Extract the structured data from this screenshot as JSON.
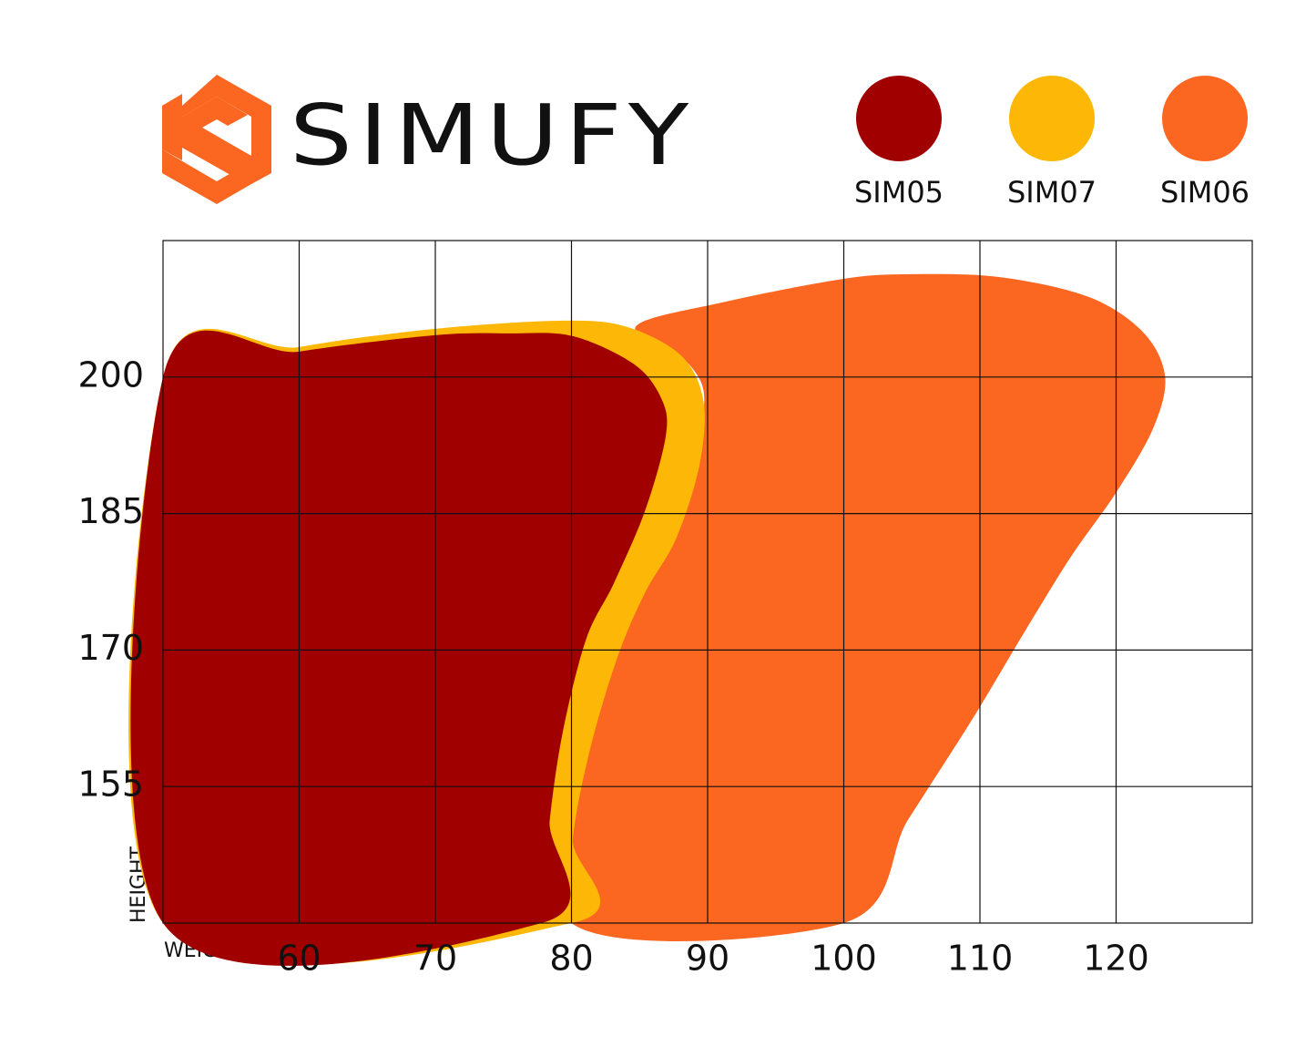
{
  "brand": "SIMUFY",
  "chart_data": {
    "type": "area",
    "x_label": "WEIGHT",
    "y_label": "HEIGHT",
    "xlim": [
      50,
      130
    ],
    "ylim": [
      140,
      215
    ],
    "xticks": [
      60,
      70,
      80,
      90,
      100,
      110,
      120
    ],
    "yticks": [
      155,
      170,
      185,
      200
    ],
    "grid": true,
    "legend": "top-right",
    "series": [
      {
        "name": "SIM05",
        "color": "#a00000",
        "x": [
          50,
          50,
          60,
          70,
          75.4,
          80.1,
          84.7,
          86.7,
          86.9,
          85.4,
          83.1,
          81.1,
          79.4,
          78.4,
          77.8
        ],
        "values": [
          140,
          200,
          202.8,
          204.6,
          204.8,
          204.5,
          201.3,
          197.3,
          193.3,
          185.3,
          177.3,
          171.3,
          161.3,
          151.3,
          140
        ]
      },
      {
        "name": "SIM07",
        "color": "#fdb706",
        "x": [
          50,
          50,
          60,
          70,
          79.4,
          84.1,
          88.1,
          89.7,
          89.4,
          87.7,
          85.4,
          83.4,
          81.4,
          80.1,
          80
        ],
        "values": [
          140,
          200,
          203.3,
          205.3,
          206.2,
          205.5,
          202.3,
          197.3,
          190.3,
          182.3,
          176.3,
          169.3,
          159.3,
          149.3,
          140
        ]
      },
      {
        "name": "SIM06",
        "color": "#fb6620",
        "x": [
          80,
          81.4,
          83.4,
          84.7,
          87.4,
          89.7,
          88.7,
          84.7,
          91.4,
          100,
          104.7,
          111.4,
          118,
          122,
          123.6,
          122.7,
          120,
          116.7,
          113.4,
          109.4,
          104.7,
          100
        ],
        "values": [
          140,
          161.3,
          171.3,
          177.3,
          185.3,
          196.3,
          201.3,
          205.5,
          208.3,
          210.8,
          211.3,
          211,
          208.8,
          204.9,
          200,
          194.3,
          187.3,
          180.3,
          172.3,
          162.3,
          151.3,
          140
        ]
      }
    ]
  }
}
